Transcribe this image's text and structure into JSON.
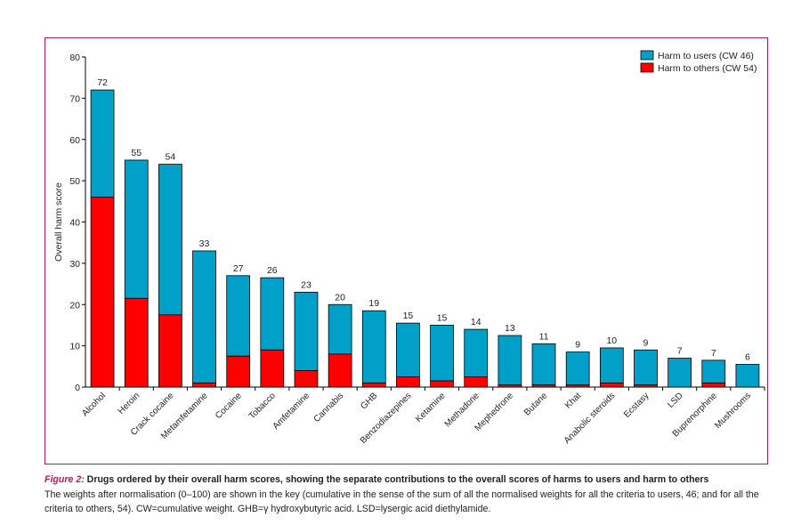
{
  "chart_data": {
    "type": "bar",
    "stacked": true,
    "ylabel": "Overall harm score",
    "xlabel": "",
    "ylim": [
      0,
      80
    ],
    "yticks": [
      0,
      10,
      20,
      30,
      40,
      50,
      60,
      70,
      80
    ],
    "grid": false,
    "legend_position": "top-right",
    "categories": [
      "Alcohol",
      "Heroin",
      "Crack cocaine",
      "Metamfetamine",
      "Cocaine",
      "Tobacco",
      "Amfetamine",
      "Cannabis",
      "GHB",
      "Benzodiazepines",
      "Ketamine",
      "Methadone",
      "Mephedrone",
      "Butane",
      "Khat",
      "Anabolic steroids",
      "Ecstasy",
      "LSD",
      "Buprenorphine",
      "Mushrooms"
    ],
    "totals": [
      72,
      55,
      54,
      33,
      27,
      26,
      23,
      20,
      19,
      15,
      15,
      14,
      13,
      11,
      9,
      10,
      9,
      7,
      7,
      6
    ],
    "series": [
      {
        "name": "Harm to users (CW 46)",
        "color": "#00a0c8",
        "values": [
          26,
          33.5,
          36.5,
          32,
          19.5,
          17.5,
          19,
          12,
          17.5,
          13,
          13.5,
          11.5,
          12,
          10,
          8,
          8.5,
          8.5,
          7,
          5.5,
          5.5
        ]
      },
      {
        "name": "Harm to others (CW 54)",
        "color": "#ff0000",
        "values": [
          46,
          21.5,
          17.5,
          1,
          7.5,
          9,
          4,
          8,
          1,
          2.5,
          1.5,
          2.5,
          0.5,
          0.5,
          0.5,
          1,
          0.5,
          0,
          1,
          0
        ]
      }
    ]
  },
  "caption": {
    "figure_label": "Figure 2:",
    "title": " Drugs ordered by their overall harm scores, showing the separate contributions to the overall scores of harms to users and harm to others",
    "body": "The weights after normalisation (0–100) are shown in the key (cumulative in the sense of the sum of all the normalised weights for all the criteria to users, 46; and for all the criteria to others, 54). CW=cumulative weight. GHB=γ hydroxybutyric acid. LSD=lysergic acid diethylamide."
  }
}
